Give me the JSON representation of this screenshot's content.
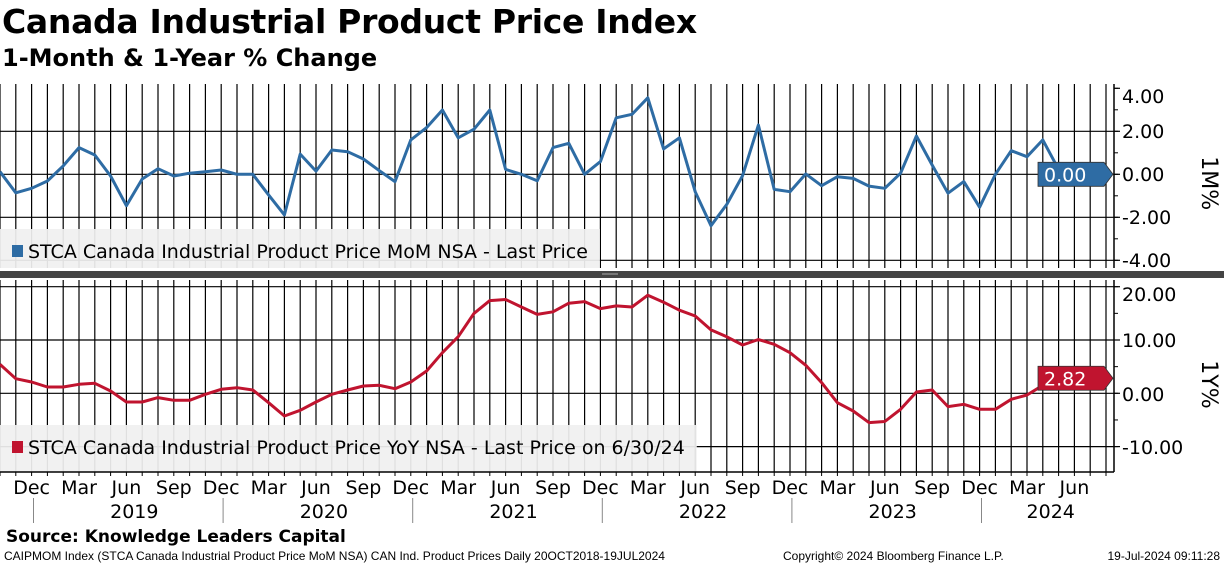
{
  "title": "Canada Industrial Product Price Index",
  "subtitle": "1-Month & 1-Year % Change",
  "source": "Source: Knowledge Leaders Capital",
  "footer": {
    "left": "CAIPMOM Index (STCA Canada Industrial Product Price MoM NSA) CAN Ind. Product Prices  Daily 20OCT2018-19JUL2024",
    "center": "Copyright© 2024 Bloomberg Finance L.P.",
    "right": "19-Jul-2024 09:11:28"
  },
  "colors": {
    "mom": "#2e6ca4",
    "yoy": "#c0142f",
    "legend_bg": "#f0f0f0",
    "divider": "#444444"
  },
  "chart_data": [
    {
      "type": "line",
      "title": "STCA Canada Industrial Product Price MoM NSA - Last Price",
      "legend": "STCA Canada Industrial Product Price MoM NSA - Last Price",
      "axis_label": "1M%",
      "last_value_label": "0.00",
      "x_start": "2018-10",
      "x_end": "2024-06",
      "x_unit": "month",
      "ylim": [
        -5,
        4.2
      ],
      "yticks": [
        4,
        2,
        0,
        -2,
        -4
      ],
      "ytick_labels": [
        "4.00",
        "2.00",
        "0.00",
        "-2.00",
        "-4.00"
      ],
      "values": [
        0.12,
        -0.86,
        -0.65,
        -0.31,
        0.39,
        1.24,
        0.9,
        -0.08,
        -1.46,
        -0.22,
        0.26,
        -0.08,
        0.05,
        0.12,
        0.2,
        0,
        0,
        -0.96,
        -1.89,
        0.94,
        0.15,
        1.13,
        1.05,
        0.71,
        0.17,
        -0.34,
        1.6,
        2.17,
        2.99,
        1.7,
        2.1,
        2.99,
        0.23,
        0,
        -0.3,
        1.24,
        1.44,
        0,
        0.59,
        2.63,
        2.79,
        3.56,
        1.18,
        1.7,
        -0.81,
        -2.39,
        -1.4,
        -0.06,
        2.29,
        -0.7,
        -0.81,
        0.02,
        -0.53,
        -0.11,
        -0.19,
        -0.55,
        -0.65,
        0.05,
        1.78,
        0.43,
        -0.88,
        -0.34,
        -1.53,
        0,
        1.1,
        0.82,
        1.6,
        0.23,
        0.0
      ]
    },
    {
      "type": "line",
      "title": "STCA Canada Industrial Product Price YoY NSA - Last Price on 6/30/24",
      "legend": "STCA Canada Industrial Product Price YoY NSA - Last Price on 6/30/24",
      "axis_label": "1Y%",
      "last_value_label": "2.82",
      "x_start": "2018-10",
      "x_end": "2024-06",
      "x_unit": "month",
      "ylim": [
        -15,
        21.5
      ],
      "yticks": [
        20,
        10,
        0,
        -10
      ],
      "ytick_labels": [
        "20.00",
        "10.00",
        "0.00",
        "-10.00"
      ],
      "values": [
        5.44,
        2.74,
        2.12,
        1.18,
        1.18,
        1.69,
        1.88,
        0.43,
        -1.63,
        -1.63,
        -0.81,
        -1.31,
        -1.31,
        -0.19,
        0.75,
        1.06,
        0.62,
        -1.76,
        -4.26,
        -3.19,
        -1.63,
        -0.19,
        0.62,
        1.37,
        1.5,
        0.87,
        2.12,
        4.18,
        7.62,
        10.62,
        15.0,
        17.4,
        17.6,
        16.2,
        14.8,
        15.3,
        16.9,
        17.2,
        15.9,
        16.4,
        16.2,
        18.4,
        17.1,
        15.6,
        14.5,
        11.9,
        10.6,
        9.06,
        10.1,
        9.19,
        7.62,
        5.25,
        2.0,
        -1.76,
        -3.32,
        -5.5,
        -5.3,
        -3.0,
        0.25,
        0.62,
        -2.5,
        -2.07,
        -3.0,
        -3.0,
        -1.13,
        -0.31,
        1.5,
        2.3,
        2.82
      ]
    }
  ],
  "x_axis": {
    "month_labels": [
      "Dec",
      "Mar",
      "Jun",
      "Sep",
      "Dec",
      "Mar",
      "Jun",
      "Sep",
      "Dec",
      "Mar",
      "Jun",
      "Sep",
      "Dec",
      "Mar",
      "Jun",
      "Sep",
      "Dec",
      "Mar",
      "Jun",
      "Sep",
      "Dec",
      "Mar",
      "Jun"
    ],
    "year_labels": [
      "2019",
      "2020",
      "2021",
      "2022",
      "2023",
      "2024"
    ]
  }
}
